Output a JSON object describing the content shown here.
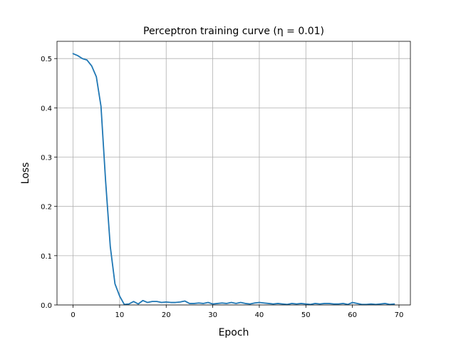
{
  "chart_data": {
    "type": "line",
    "title": "Perceptron training curve (η = 0.01)",
    "xlabel": "Epoch",
    "ylabel": "Loss",
    "xlim": [
      -3.45,
      72.45
    ],
    "ylim": [
      0,
      0.535
    ],
    "grid": true,
    "x_ticks": [
      0,
      10,
      20,
      30,
      40,
      50,
      60,
      70
    ],
    "y_ticks": [
      0.0,
      0.1,
      0.2,
      0.3,
      0.4,
      0.5
    ],
    "x_tick_labels": [
      "0",
      "10",
      "20",
      "30",
      "40",
      "50",
      "60",
      "70"
    ],
    "y_tick_labels": [
      "0.0",
      "0.1",
      "0.2",
      "0.3",
      "0.4",
      "0.5"
    ],
    "series": [
      {
        "color": "#1f77b4",
        "x": [
          0,
          1,
          2,
          3,
          4,
          5,
          6,
          7,
          8,
          9,
          10,
          11,
          12,
          13,
          14,
          15,
          16,
          17,
          18,
          19,
          20,
          21,
          22,
          23,
          24,
          25,
          26,
          27,
          28,
          29,
          30,
          31,
          32,
          33,
          34,
          35,
          36,
          37,
          38,
          39,
          40,
          41,
          42,
          43,
          44,
          45,
          46,
          47,
          48,
          49,
          50,
          51,
          52,
          53,
          54,
          55,
          56,
          57,
          58,
          59,
          60,
          61,
          62,
          63,
          64,
          65,
          66,
          67,
          68,
          69
        ],
        "y": [
          0.51,
          0.506,
          0.5,
          0.497,
          0.485,
          0.463,
          0.403,
          0.25,
          0.118,
          0.043,
          0.018,
          0.001,
          0.002,
          0.007,
          0.002,
          0.009,
          0.005,
          0.007,
          0.007,
          0.005,
          0.006,
          0.005,
          0.005,
          0.006,
          0.008,
          0.003,
          0.003,
          0.004,
          0.003,
          0.005,
          0.002,
          0.003,
          0.004,
          0.003,
          0.005,
          0.003,
          0.005,
          0.003,
          0.002,
          0.004,
          0.005,
          0.004,
          0.003,
          0.002,
          0.003,
          0.002,
          0.001,
          0.003,
          0.002,
          0.003,
          0.002,
          0.001,
          0.003,
          0.002,
          0.003,
          0.003,
          0.002,
          0.002,
          0.003,
          0.001,
          0.005,
          0.003,
          0.001,
          0.001,
          0.002,
          0.001,
          0.002,
          0.003,
          0.001,
          0.002
        ]
      }
    ]
  }
}
